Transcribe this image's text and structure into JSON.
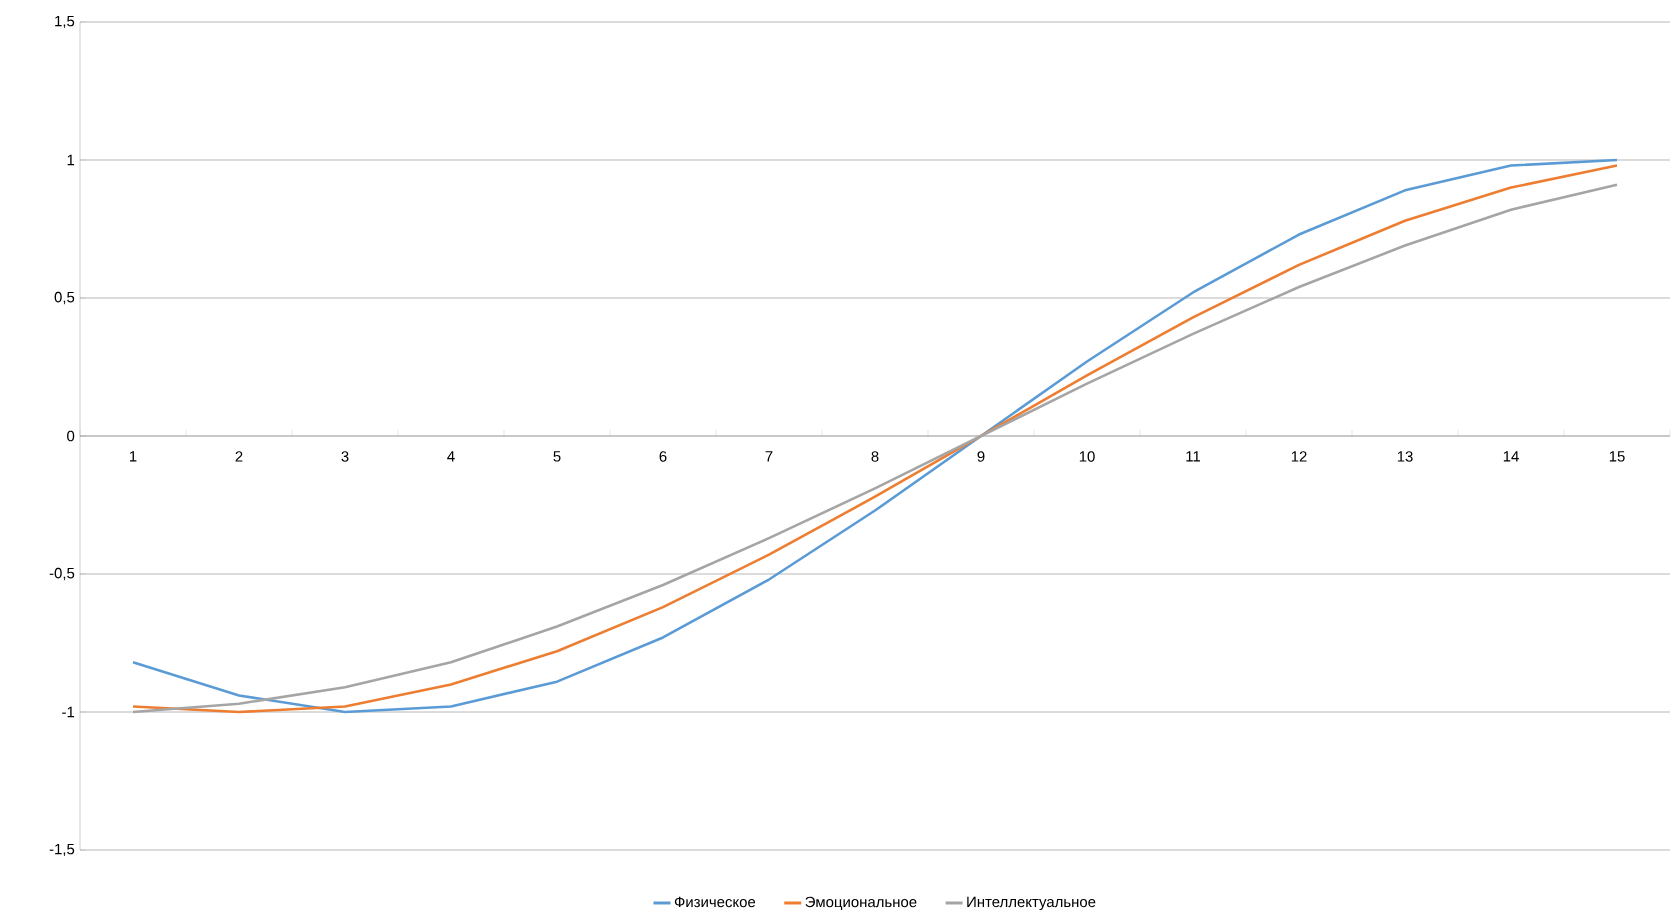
{
  "chart_data": {
    "type": "line",
    "categories": [
      "1",
      "2",
      "3",
      "4",
      "5",
      "6",
      "7",
      "8",
      "9",
      "10",
      "11",
      "12",
      "13",
      "14",
      "15"
    ],
    "series": [
      {
        "name": "Физическое",
        "color": "#5b9bd5",
        "values": [
          -0.82,
          -0.94,
          -1.0,
          -0.98,
          -0.89,
          -0.73,
          -0.52,
          -0.27,
          0,
          0.27,
          0.52,
          0.73,
          0.89,
          0.98,
          1.0
        ]
      },
      {
        "name": "Эмоциональное",
        "color": "#ed7d31",
        "values": [
          -0.98,
          -1.0,
          -0.98,
          -0.9,
          -0.78,
          -0.62,
          -0.43,
          -0.22,
          0,
          0.22,
          0.43,
          0.62,
          0.78,
          0.9,
          0.98
        ]
      },
      {
        "name": "Интеллектуальное",
        "color": "#a5a5a5",
        "values": [
          -1.0,
          -0.97,
          -0.91,
          -0.82,
          -0.69,
          -0.54,
          -0.37,
          -0.19,
          0,
          0.19,
          0.37,
          0.54,
          0.69,
          0.82,
          0.91
        ]
      }
    ],
    "ylim": [
      -1.5,
      1.5
    ],
    "yticks": [
      {
        "value": -1.5,
        "label": "-1,5"
      },
      {
        "value": -1,
        "label": "-1"
      },
      {
        "value": -0.5,
        "label": "-0,5"
      },
      {
        "value": 0,
        "label": "0"
      },
      {
        "value": 0.5,
        "label": "0,5"
      },
      {
        "value": 1,
        "label": "1"
      },
      {
        "value": 1.5,
        "label": "1,5"
      }
    ],
    "grid": "y",
    "legend": "bottom",
    "marker": "none",
    "line_style": "solid"
  }
}
